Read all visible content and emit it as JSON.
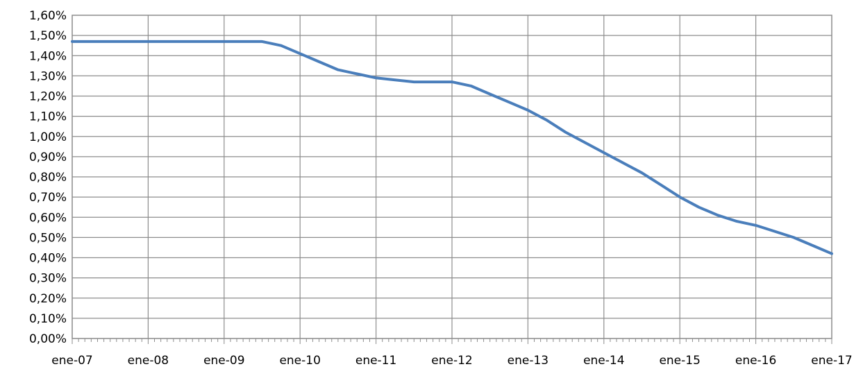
{
  "chart_data": {
    "type": "line",
    "title": "",
    "xlabel": "",
    "ylabel": "",
    "x_tick_labels": [
      "ene-07",
      "ene-08",
      "ene-09",
      "ene-10",
      "ene-11",
      "ene-12",
      "ene-13",
      "ene-14",
      "ene-15",
      "ene-16",
      "ene-17"
    ],
    "y_tick_labels": [
      "0,00%",
      "0,10%",
      "0,20%",
      "0,30%",
      "0,40%",
      "0,50%",
      "0,60%",
      "0,70%",
      "0,80%",
      "0,90%",
      "1,00%",
      "1,10%",
      "1,20%",
      "1,30%",
      "1,40%",
      "1,50%",
      "1,60%"
    ],
    "xlim": [
      "2007-01",
      "2017-01"
    ],
    "ylim": [
      0,
      1.6
    ],
    "y_unit": "%",
    "grid": "vertical-and-horizontal",
    "legend": "none",
    "series_color": "#4a7ebb",
    "series": [
      {
        "x": [
          "2007-01",
          "2008-01",
          "2009-01",
          "2009-07",
          "2009-10",
          "2010-01",
          "2010-04",
          "2010-07",
          "2010-10",
          "2011-01",
          "2011-04",
          "2011-07",
          "2011-10",
          "2012-01",
          "2012-04",
          "2012-07",
          "2012-10",
          "2013-01",
          "2013-04",
          "2013-07",
          "2013-10",
          "2014-01",
          "2014-04",
          "2014-07",
          "2014-10",
          "2015-01",
          "2015-04",
          "2015-07",
          "2015-10",
          "2016-01",
          "2016-04",
          "2016-07",
          "2016-10",
          "2017-01"
        ],
        "values": [
          1.47,
          1.47,
          1.47,
          1.47,
          1.45,
          1.41,
          1.37,
          1.33,
          1.31,
          1.29,
          1.28,
          1.27,
          1.27,
          1.27,
          1.25,
          1.21,
          1.17,
          1.13,
          1.08,
          1.02,
          0.97,
          0.92,
          0.87,
          0.82,
          0.76,
          0.7,
          0.65,
          0.61,
          0.58,
          0.56,
          0.53,
          0.5,
          0.46,
          0.42
        ]
      }
    ]
  }
}
